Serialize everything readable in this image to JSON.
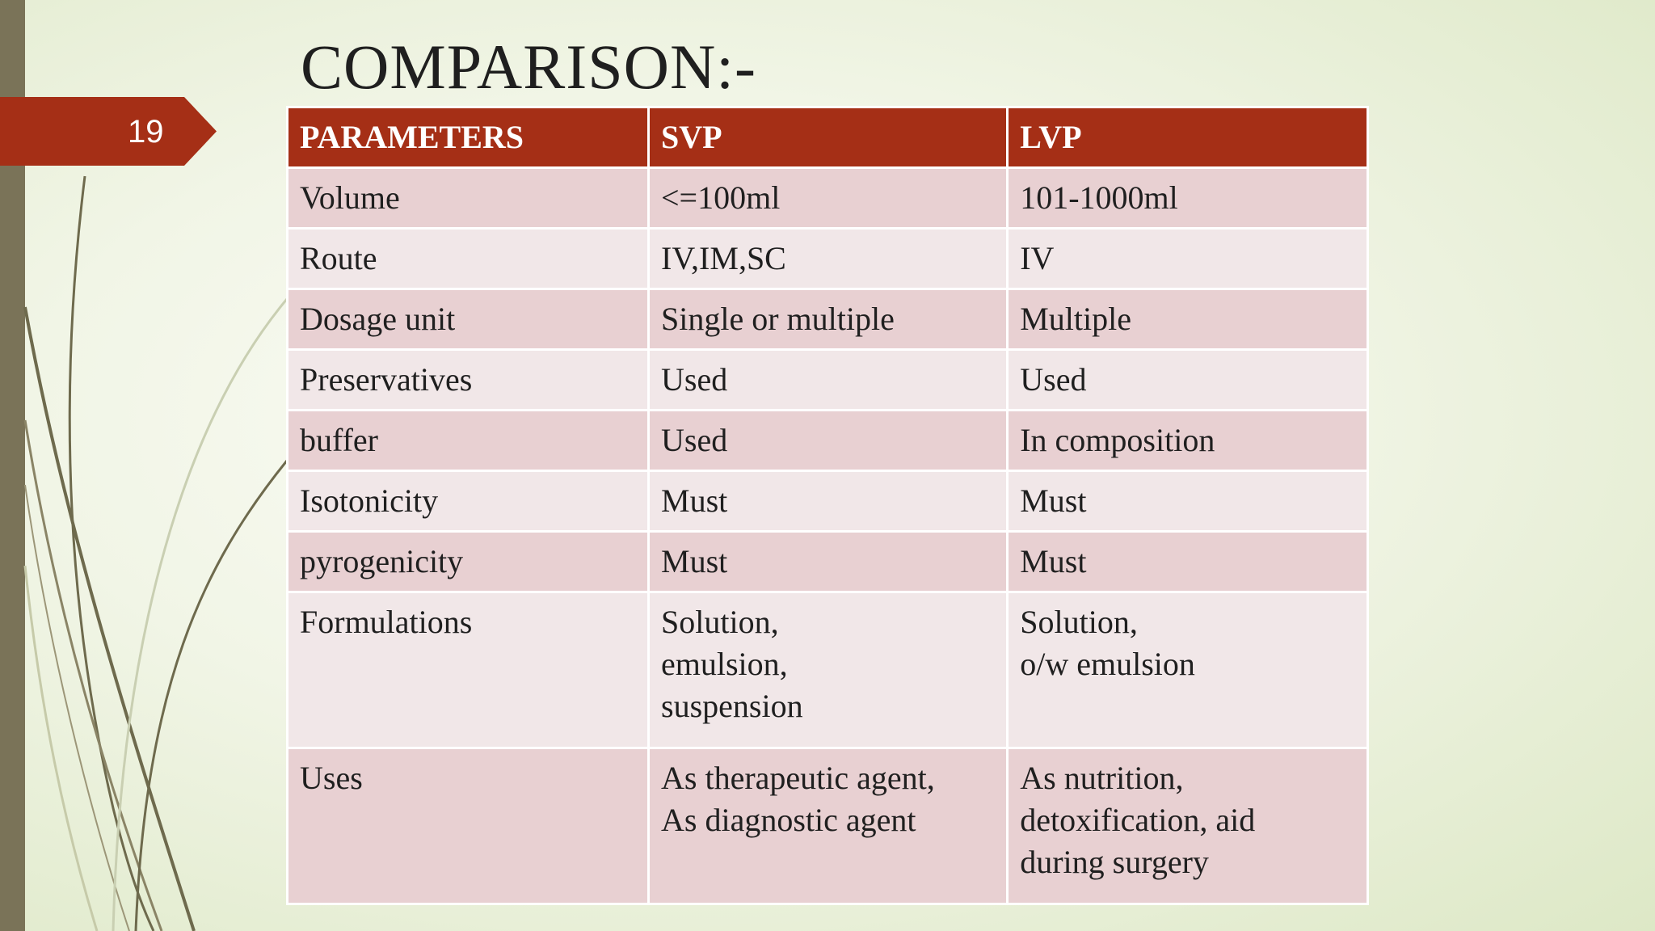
{
  "slide": {
    "number": "19",
    "title": "COMPARISON:-"
  },
  "table": {
    "headers": [
      "PARAMETERS",
      "SVP",
      "LVP"
    ],
    "rows": [
      {
        "param": "Volume",
        "svp": [
          "<=100ml"
        ],
        "lvp": [
          "101-1000ml"
        ]
      },
      {
        "param": "Route",
        "svp": [
          "IV,IM,SC"
        ],
        "lvp": [
          "IV"
        ]
      },
      {
        "param": "Dosage unit",
        "svp": [
          "Single or multiple"
        ],
        "lvp": [
          "Multiple"
        ]
      },
      {
        "param": "Preservatives",
        "svp": [
          "Used"
        ],
        "lvp": [
          "Used"
        ]
      },
      {
        "param": "buffer",
        "svp": [
          "Used"
        ],
        "lvp": [
          "In composition"
        ]
      },
      {
        "param": "Isotonicity",
        "svp": [
          "Must"
        ],
        "lvp": [
          "Must"
        ]
      },
      {
        "param": "pyrogenicity",
        "svp": [
          "Must"
        ],
        "lvp": [
          "Must"
        ]
      },
      {
        "param": "Formulations",
        "svp": [
          "Solution,",
          "emulsion,",
          "suspension"
        ],
        "lvp": [
          "Solution,",
          "o/w emulsion"
        ]
      },
      {
        "param": "Uses",
        "svp": [
          "As therapeutic agent,",
          "As diagnostic agent"
        ],
        "lvp": [
          "As nutrition,",
          "detoxification, aid",
          "during surgery"
        ]
      }
    ]
  },
  "colors": {
    "accent": "#a52f16",
    "row_odd": "#e8d0d2",
    "row_even": "#f1e7e8",
    "left_bar": "#7a7358"
  }
}
